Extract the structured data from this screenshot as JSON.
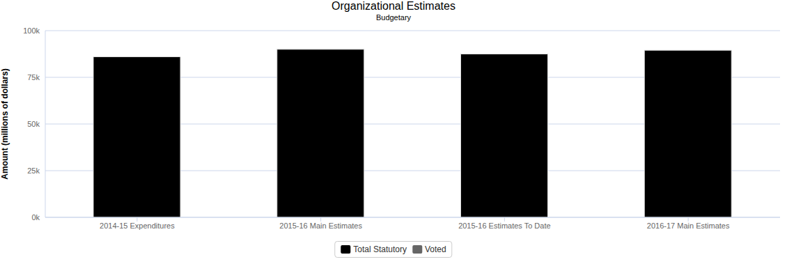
{
  "chart_data": {
    "type": "bar",
    "title": "Organizational Estimates",
    "subtitle": "Budgetary",
    "y_label": "Amount (millions of dollars)",
    "categories": [
      "2014-15 Expenditures",
      "2015-16 Main Estimates",
      "2015-16 Estimates To Date",
      "2016-17 Main Estimates"
    ],
    "series": [
      {
        "name": "Total Statutory",
        "color": "#000000",
        "values": [
          86000,
          90000,
          87500,
          89500
        ]
      },
      {
        "name": "Voted",
        "color": "#666666",
        "values": [
          0,
          0,
          0,
          0
        ]
      }
    ],
    "ylim": [
      0,
      100000
    ],
    "yticks": [
      {
        "value": 0,
        "label": "0k"
      },
      {
        "value": 25000,
        "label": "25k"
      },
      {
        "value": 50000,
        "label": "50k"
      },
      {
        "value": 75000,
        "label": "75k"
      },
      {
        "value": 100000,
        "label": "100k"
      }
    ],
    "grid": true,
    "stacked": true,
    "legend": "bottom"
  }
}
